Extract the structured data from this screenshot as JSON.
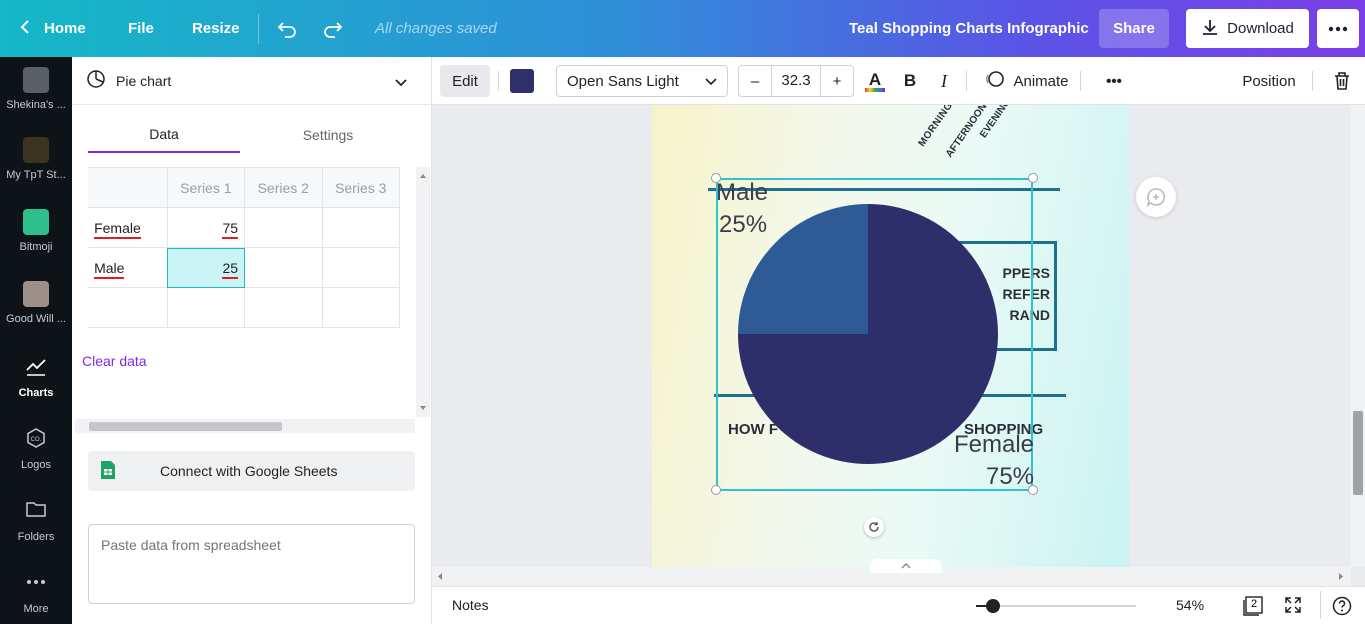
{
  "topbar": {
    "home": "Home",
    "file": "File",
    "resize": "Resize",
    "saved_status": "All changes saved",
    "design_title": "Teal Shopping Charts Infographic",
    "share": "Share",
    "download": "Download"
  },
  "rail": {
    "items": [
      {
        "label": "Shekina's ..."
      },
      {
        "label": "My TpT St..."
      },
      {
        "label": "Bitmoji"
      },
      {
        "label": "Good Will ..."
      },
      {
        "label": "Charts"
      },
      {
        "label": "Logos"
      },
      {
        "label": "Folders"
      },
      {
        "label": "More"
      }
    ]
  },
  "panel": {
    "chart_type": "Pie chart",
    "tabs": [
      "Data",
      "Settings"
    ],
    "grid": {
      "headers": [
        "",
        "Series 1",
        "Series 2",
        "Series 3"
      ],
      "rows": [
        {
          "label": "Female",
          "value": "75"
        },
        {
          "label": "Male",
          "value": "25"
        }
      ]
    },
    "clear_data": "Clear data",
    "connect_sheets": "Connect with Google Sheets",
    "paste_placeholder": "Paste data from spreadsheet"
  },
  "toolbar": {
    "edit": "Edit",
    "color_hex": "#2e3169",
    "font": "Open Sans Light",
    "font_size": "32.3",
    "text_color_letter": "A",
    "bold": "B",
    "italic": "I",
    "animate": "Animate",
    "more": "•••",
    "position": "Position"
  },
  "canvas": {
    "top_labels": [
      "MORNING",
      "AFTERNOON",
      "EVENING"
    ],
    "box_text": [
      "PPERS",
      "REFER",
      "RAND"
    ],
    "bottom_text_left": "HOW F",
    "bottom_text_right": "SHOPPING"
  },
  "chart_data": {
    "type": "pie",
    "categories": [
      "Female",
      "Male"
    ],
    "values": [
      75,
      25
    ],
    "colors": [
      "#2e2f6a",
      "#2e5a96"
    ],
    "labels": [
      {
        "name": "Male",
        "pct": "25%"
      },
      {
        "name": "Female",
        "pct": "75%"
      }
    ]
  },
  "bottombar": {
    "notes": "Notes",
    "zoom": "54%",
    "zoom_level": 0.54,
    "page_count": "2"
  }
}
